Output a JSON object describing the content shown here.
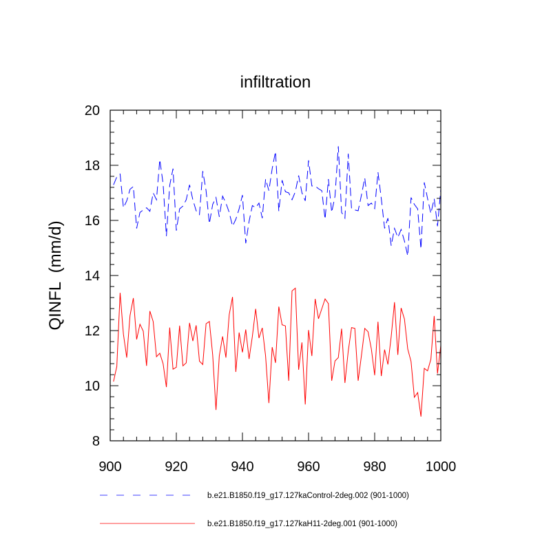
{
  "chart_data": {
    "type": "line",
    "title": "infiltration",
    "xlabel": "",
    "ylabel": "QINFL  (mm/d)",
    "xlim": [
      900,
      1000
    ],
    "ylim": [
      8,
      20
    ],
    "xticks": [
      900,
      920,
      940,
      960,
      980,
      1000
    ],
    "yticks": [
      8,
      10,
      12,
      14,
      16,
      18,
      20
    ],
    "xtick_labels": [
      "900",
      "920",
      "940",
      "960",
      "980",
      "1000"
    ],
    "ytick_labels": [
      "8",
      "10",
      "12",
      "14",
      "16",
      "18",
      "20"
    ],
    "grid": false,
    "legend_position": "bottom",
    "x_start": 901,
    "series": [
      {
        "name": "b.e21.B1850.f19_g17.127kaControl-2deg.002 (901-1000)",
        "color": "#0000ff",
        "style": "dashed",
        "values": [
          17.29,
          17.58,
          17.68,
          16.46,
          16.71,
          17.13,
          17.23,
          15.71,
          16.29,
          16.38,
          16.46,
          16.33,
          17.0,
          16.75,
          18.21,
          17.33,
          15.43,
          17.27,
          17.88,
          15.63,
          16.42,
          16.52,
          16.75,
          17.29,
          16.75,
          16.35,
          16.21,
          17.79,
          17.08,
          15.88,
          16.58,
          16.83,
          16.13,
          16.88,
          16.63,
          16.29,
          15.79,
          16.04,
          16.42,
          16.92,
          15.17,
          15.96,
          16.54,
          16.46,
          16.63,
          16.08,
          17.5,
          17.08,
          17.88,
          18.5,
          16.33,
          17.46,
          17.04,
          17.0,
          16.75,
          17.04,
          17.63,
          17.0,
          16.71,
          18.18,
          17.25,
          17.25,
          17.15,
          17.08,
          16.04,
          17.5,
          16.29,
          16.88,
          18.69,
          16.29,
          16.08,
          18.42,
          16.42,
          16.38,
          16.35,
          16.92,
          17.54,
          16.54,
          16.63,
          16.43,
          17.75,
          16.79,
          15.71,
          16.08,
          15.08,
          15.71,
          15.38,
          15.67,
          15.25,
          14.71,
          16.83,
          16.58,
          16.42,
          14.96,
          17.38,
          16.79,
          16.25,
          16.79,
          15.79,
          17.13
        ]
      },
      {
        "name": "b.e21.B1850.f19_g17.127kaH11-2deg.001 (901-1000)",
        "color": "#ff0000",
        "style": "solid",
        "values": [
          10.15,
          10.7,
          13.37,
          11.87,
          11.02,
          12.55,
          13.18,
          11.68,
          12.23,
          11.98,
          10.72,
          12.71,
          12.33,
          11.05,
          11.18,
          10.8,
          9.95,
          12.11,
          10.6,
          10.67,
          12.18,
          10.72,
          10.83,
          12.28,
          11.62,
          12.19,
          10.89,
          10.77,
          12.25,
          12.33,
          11.12,
          9.12,
          11.08,
          11.79,
          11.02,
          12.58,
          13.22,
          10.5,
          11.93,
          11.21,
          12.04,
          10.97,
          11.79,
          12.79,
          11.73,
          12.1,
          11.08,
          9.37,
          11.4,
          10.83,
          12.87,
          12.21,
          12.17,
          10.18,
          13.44,
          13.54,
          10.58,
          11.57,
          9.32,
          12.02,
          11.08,
          13.15,
          12.43,
          12.79,
          13.15,
          12.98,
          10.18,
          10.9,
          11.02,
          12.07,
          10.1,
          11.25,
          12.11,
          12.08,
          10.18,
          11.1,
          12.08,
          11.96,
          11.33,
          10.38,
          12.32,
          10.35,
          11.31,
          10.77,
          11.79,
          13.03,
          11.12,
          12.82,
          12.42,
          11.33,
          10.88,
          9.58,
          9.75,
          8.88,
          10.63,
          10.54,
          10.96,
          12.53,
          10.44,
          11.46
        ]
      }
    ]
  }
}
